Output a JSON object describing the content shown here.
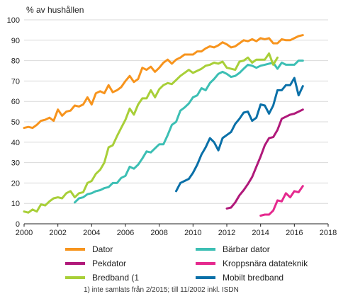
{
  "chart_data": {
    "type": "line",
    "ylabel": "% av hushållen",
    "xlim": [
      2000,
      2018
    ],
    "ylim": [
      0,
      100
    ],
    "x_ticks": [
      "2000",
      "2002",
      "2004",
      "2006",
      "2008",
      "2010",
      "2012",
      "2014",
      "2016",
      "2018"
    ],
    "y_ticks": [
      "0",
      "10",
      "20",
      "30",
      "40",
      "50",
      "60",
      "70",
      "80",
      "90",
      "100"
    ],
    "grid": "horizontal",
    "legend_position": "bottom",
    "series": [
      {
        "name": "Dator",
        "color": "#f7941d",
        "points": [
          [
            2000.0,
            47
          ],
          [
            2000.25,
            47.5
          ],
          [
            2000.5,
            47
          ],
          [
            2000.75,
            48.5
          ],
          [
            2001.0,
            50.5
          ],
          [
            2001.25,
            51
          ],
          [
            2001.5,
            52
          ],
          [
            2001.75,
            50.5
          ],
          [
            2002.0,
            56
          ],
          [
            2002.25,
            53
          ],
          [
            2002.5,
            55
          ],
          [
            2002.75,
            55.5
          ],
          [
            2003.0,
            58
          ],
          [
            2003.25,
            57.5
          ],
          [
            2003.5,
            58.5
          ],
          [
            2003.75,
            62
          ],
          [
            2004.0,
            58.5
          ],
          [
            2004.25,
            64
          ],
          [
            2004.5,
            65
          ],
          [
            2004.75,
            64
          ],
          [
            2005.0,
            68
          ],
          [
            2005.25,
            64.5
          ],
          [
            2005.5,
            65.5
          ],
          [
            2005.75,
            67
          ],
          [
            2006.0,
            70
          ],
          [
            2006.25,
            72.5
          ],
          [
            2006.5,
            69.5
          ],
          [
            2006.75,
            71
          ],
          [
            2007.0,
            76.5
          ],
          [
            2007.25,
            75.5
          ],
          [
            2007.5,
            77
          ],
          [
            2007.75,
            74.5
          ],
          [
            2008.0,
            76.5
          ],
          [
            2008.25,
            79
          ],
          [
            2008.5,
            80.5
          ],
          [
            2008.75,
            78.5
          ],
          [
            2009.0,
            80.5
          ],
          [
            2009.25,
            81.5
          ],
          [
            2009.5,
            83
          ],
          [
            2009.75,
            83
          ],
          [
            2010.0,
            83
          ],
          [
            2010.25,
            84.5
          ],
          [
            2010.5,
            84.5
          ],
          [
            2010.75,
            86
          ],
          [
            2011.0,
            87
          ],
          [
            2011.25,
            86.5
          ],
          [
            2011.5,
            87.5
          ],
          [
            2011.75,
            89
          ],
          [
            2012.0,
            88
          ],
          [
            2012.25,
            86.5
          ],
          [
            2012.5,
            87
          ],
          [
            2012.75,
            88.5
          ],
          [
            2013.0,
            90
          ],
          [
            2013.25,
            89.5
          ],
          [
            2013.5,
            90.5
          ],
          [
            2013.75,
            89.5
          ],
          [
            2014.0,
            91
          ],
          [
            2014.25,
            90.5
          ],
          [
            2014.5,
            91
          ],
          [
            2014.75,
            88.5
          ],
          [
            2015.0,
            88.5
          ],
          [
            2015.25,
            90.5
          ],
          [
            2015.5,
            90
          ],
          [
            2015.75,
            90
          ],
          [
            2016.0,
            91
          ],
          [
            2016.25,
            92
          ],
          [
            2016.5,
            92.5
          ]
        ]
      },
      {
        "name": "Bärbar dator",
        "color": "#3cbfb4",
        "points": [
          [
            2003.0,
            10.5
          ],
          [
            2003.25,
            12.5
          ],
          [
            2003.5,
            13
          ],
          [
            2003.75,
            14.5
          ],
          [
            2004.0,
            15
          ],
          [
            2004.25,
            16
          ],
          [
            2004.5,
            16.5
          ],
          [
            2004.75,
            17.5
          ],
          [
            2005.0,
            18
          ],
          [
            2005.25,
            20
          ],
          [
            2005.5,
            20
          ],
          [
            2005.75,
            22.5
          ],
          [
            2006.0,
            23.5
          ],
          [
            2006.25,
            28
          ],
          [
            2006.5,
            27
          ],
          [
            2006.75,
            29
          ],
          [
            2007.0,
            32
          ],
          [
            2007.25,
            35.5
          ],
          [
            2007.5,
            35
          ],
          [
            2007.75,
            37
          ],
          [
            2008.0,
            39
          ],
          [
            2008.25,
            39
          ],
          [
            2008.5,
            43.5
          ],
          [
            2008.75,
            48.5
          ],
          [
            2009.0,
            50
          ],
          [
            2009.25,
            55.5
          ],
          [
            2009.5,
            57
          ],
          [
            2009.75,
            59
          ],
          [
            2010.0,
            62
          ],
          [
            2010.25,
            63
          ],
          [
            2010.5,
            66.5
          ],
          [
            2010.75,
            65.5
          ],
          [
            2011.0,
            69
          ],
          [
            2011.25,
            71
          ],
          [
            2011.5,
            73.5
          ],
          [
            2011.75,
            74.5
          ],
          [
            2012.0,
            73.5
          ],
          [
            2012.25,
            72
          ],
          [
            2012.5,
            72.5
          ],
          [
            2012.75,
            74
          ],
          [
            2013.0,
            76
          ],
          [
            2013.25,
            78
          ],
          [
            2013.5,
            77.5
          ],
          [
            2013.75,
            76.5
          ],
          [
            2014.0,
            77.5
          ],
          [
            2014.25,
            78
          ],
          [
            2014.5,
            78.5
          ],
          [
            2014.75,
            79
          ],
          [
            2015.0,
            76
          ],
          [
            2015.25,
            79
          ],
          [
            2015.5,
            78
          ],
          [
            2015.75,
            78
          ],
          [
            2016.0,
            78
          ],
          [
            2016.25,
            80
          ],
          [
            2016.5,
            80
          ]
        ]
      },
      {
        "name": "Pekdator",
        "color": "#b0197a",
        "points": [
          [
            2012.0,
            7.5
          ],
          [
            2012.25,
            8
          ],
          [
            2012.5,
            10.5
          ],
          [
            2012.75,
            14
          ],
          [
            2013.0,
            16.5
          ],
          [
            2013.25,
            19.5
          ],
          [
            2013.5,
            23
          ],
          [
            2013.75,
            28
          ],
          [
            2014.0,
            33
          ],
          [
            2014.25,
            38.5
          ],
          [
            2014.5,
            42
          ],
          [
            2014.75,
            42.5
          ],
          [
            2015.0,
            46
          ],
          [
            2015.25,
            51.5
          ],
          [
            2015.5,
            52.5
          ],
          [
            2015.75,
            53.5
          ],
          [
            2016.0,
            54
          ],
          [
            2016.25,
            55
          ],
          [
            2016.5,
            56
          ]
        ]
      },
      {
        "name": "Kroppsnära datateknik",
        "color": "#e5298e",
        "points": [
          [
            2014.0,
            4
          ],
          [
            2014.25,
            4.5
          ],
          [
            2014.5,
            4.5
          ],
          [
            2014.75,
            6.5
          ],
          [
            2015.0,
            11.5
          ],
          [
            2015.25,
            11
          ],
          [
            2015.5,
            15
          ],
          [
            2015.75,
            13
          ],
          [
            2016.0,
            16
          ],
          [
            2016.25,
            15.5
          ],
          [
            2016.5,
            18.5
          ]
        ]
      },
      {
        "name": "Bredband (1",
        "color": "#a8cf38",
        "points": [
          [
            2000.0,
            6
          ],
          [
            2000.25,
            5.5
          ],
          [
            2000.5,
            7
          ],
          [
            2000.75,
            6
          ],
          [
            2001.0,
            9.5
          ],
          [
            2001.25,
            9
          ],
          [
            2001.5,
            11
          ],
          [
            2001.75,
            12.5
          ],
          [
            2002.0,
            13
          ],
          [
            2002.25,
            12.5
          ],
          [
            2002.5,
            15
          ],
          [
            2002.75,
            16
          ],
          [
            2003.0,
            13
          ],
          [
            2003.25,
            15
          ],
          [
            2003.5,
            15.5
          ],
          [
            2003.75,
            20
          ],
          [
            2004.0,
            21
          ],
          [
            2004.25,
            24.5
          ],
          [
            2004.5,
            26.5
          ],
          [
            2004.75,
            30
          ],
          [
            2005.0,
            37.5
          ],
          [
            2005.25,
            38.5
          ],
          [
            2005.5,
            43
          ],
          [
            2005.75,
            47
          ],
          [
            2006.0,
            51
          ],
          [
            2006.25,
            56.5
          ],
          [
            2006.5,
            53.5
          ],
          [
            2006.75,
            58.5
          ],
          [
            2007.0,
            61.5
          ],
          [
            2007.25,
            61.5
          ],
          [
            2007.5,
            65.5
          ],
          [
            2007.75,
            62
          ],
          [
            2008.0,
            66
          ],
          [
            2008.25,
            68
          ],
          [
            2008.5,
            69
          ],
          [
            2008.75,
            68.5
          ],
          [
            2009.0,
            70.5
          ],
          [
            2009.25,
            72.5
          ],
          [
            2009.5,
            74
          ],
          [
            2009.75,
            75.5
          ],
          [
            2010.0,
            74
          ],
          [
            2010.25,
            75
          ],
          [
            2010.5,
            76
          ],
          [
            2010.75,
            77.5
          ],
          [
            2011.0,
            78
          ],
          [
            2011.25,
            79
          ],
          [
            2011.5,
            78.5
          ],
          [
            2011.75,
            79.5
          ],
          [
            2012.0,
            76.5
          ],
          [
            2012.25,
            76
          ],
          [
            2012.5,
            75.5
          ],
          [
            2012.75,
            79.5
          ],
          [
            2013.0,
            80
          ],
          [
            2013.25,
            81.5
          ],
          [
            2013.5,
            79
          ],
          [
            2013.75,
            80.5
          ],
          [
            2014.0,
            80.5
          ],
          [
            2014.25,
            80.5
          ],
          [
            2014.5,
            83.5
          ],
          [
            2014.75,
            78
          ],
          [
            2015.0,
            81.5
          ]
        ]
      },
      {
        "name": "Mobilt bredband",
        "color": "#0a70a8",
        "points": [
          [
            2009.0,
            16
          ],
          [
            2009.25,
            20
          ],
          [
            2009.5,
            21
          ],
          [
            2009.75,
            22
          ],
          [
            2010.0,
            25
          ],
          [
            2010.25,
            29
          ],
          [
            2010.5,
            34
          ],
          [
            2010.75,
            37.5
          ],
          [
            2011.0,
            42
          ],
          [
            2011.25,
            40
          ],
          [
            2011.5,
            36
          ],
          [
            2011.75,
            42
          ],
          [
            2012.0,
            43.5
          ],
          [
            2012.25,
            45
          ],
          [
            2012.5,
            49
          ],
          [
            2012.75,
            51.5
          ],
          [
            2013.0,
            54.5
          ],
          [
            2013.25,
            55
          ],
          [
            2013.5,
            50.5
          ],
          [
            2013.75,
            52
          ],
          [
            2014.0,
            58.5
          ],
          [
            2014.25,
            58
          ],
          [
            2014.5,
            54
          ],
          [
            2014.75,
            58
          ],
          [
            2015.0,
            65.5
          ],
          [
            2015.25,
            65.5
          ],
          [
            2015.5,
            68
          ],
          [
            2015.75,
            68
          ],
          [
            2016.0,
            71.5
          ],
          [
            2016.25,
            63
          ],
          [
            2016.5,
            67.5
          ]
        ]
      }
    ],
    "footnote": "1) inte samlats från 2/2015; till 11/2002 inkl. ISDN"
  }
}
